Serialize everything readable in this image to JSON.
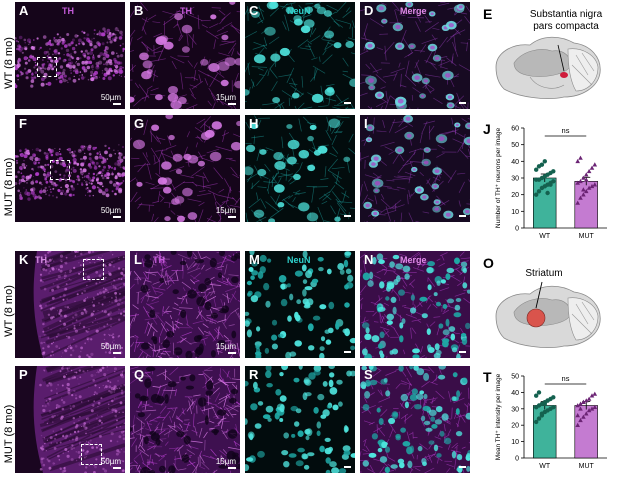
{
  "rows": {
    "top_wt": "WT (8 mo)",
    "top_mut": "MUT (8 mo)",
    "bottom_wt": "WT (8 mo)",
    "bottom_mut": "MUT (8 mo)"
  },
  "stains": {
    "th": "TH",
    "neun": "NeuN",
    "merge": "Merge"
  },
  "panels": {
    "A": "A",
    "B": "B",
    "C": "C",
    "D": "D",
    "E": "E",
    "F": "F",
    "G": "G",
    "H": "H",
    "I": "I",
    "J": "J",
    "K": "K",
    "L": "L",
    "M": "M",
    "N": "N",
    "O": "O",
    "P": "P",
    "Q": "Q",
    "R": "R",
    "S": "S",
    "T": "T"
  },
  "scales": {
    "low": "50µm",
    "high": "15µm"
  },
  "brain_labels": {
    "top": "Substantia nigra\npars compacta",
    "bottom": "Striatum"
  },
  "colors": {
    "th": "#b13dc9",
    "neun": "#1fc4c0",
    "wt_bar": "#3fb39b",
    "mut_bar": "#c47bd1",
    "wt_dot": "#14614f",
    "mut_dot": "#6b2374"
  },
  "chart_data": [
    {
      "panel": "J",
      "type": "bar",
      "categories": [
        "WT",
        "MUT"
      ],
      "values": [
        30,
        28
      ],
      "ylabel": "Number of TH⁺ neurons per image",
      "ylim": [
        0,
        60
      ],
      "yticks": [
        0,
        10,
        20,
        30,
        40,
        50,
        60
      ],
      "significance": "ns",
      "points": {
        "WT": [
          20,
          22,
          24,
          25,
          26,
          27,
          28,
          29,
          29,
          30,
          31,
          32,
          33,
          34,
          35,
          37,
          38,
          40,
          21,
          26
        ],
        "MUT": [
          15,
          18,
          20,
          22,
          24,
          25,
          26,
          27,
          28,
          30,
          32,
          34,
          36,
          38,
          40,
          42,
          23,
          29
        ]
      }
    },
    {
      "panel": "T",
      "type": "bar",
      "categories": [
        "WT",
        "MUT"
      ],
      "values": [
        32,
        32
      ],
      "ylabel": "Mean TH⁺ intensity per image",
      "ylim": [
        0,
        50
      ],
      "yticks": [
        0,
        10,
        20,
        30,
        40,
        50
      ],
      "significance": "ns",
      "points": {
        "WT": [
          22,
          24,
          26,
          28,
          29,
          30,
          31,
          31,
          32,
          33,
          34,
          35,
          36,
          37,
          38,
          40,
          27,
          33,
          35
        ],
        "MUT": [
          20,
          23,
          25,
          27,
          29,
          30,
          31,
          32,
          33,
          34,
          35,
          36,
          38,
          39,
          26,
          30,
          34
        ]
      }
    }
  ]
}
